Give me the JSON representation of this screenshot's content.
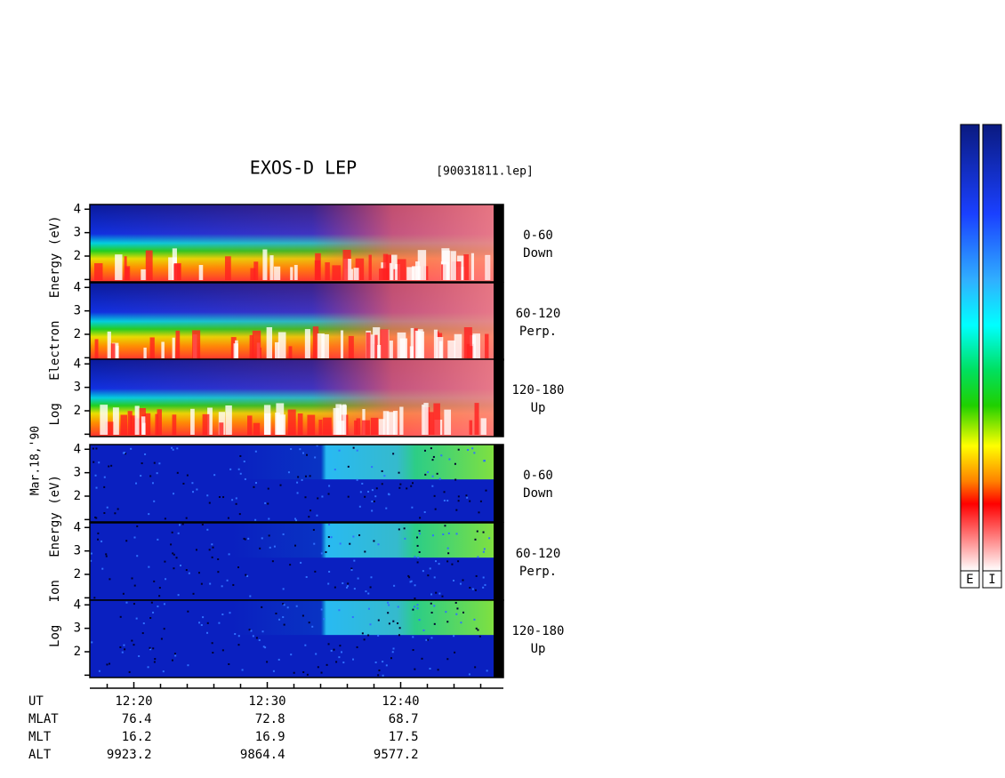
{
  "chart_data": {
    "type": "spectrogram",
    "title": "EXOS-D LEP",
    "file_label": "[90031811.lep]",
    "date_label": "Mar.18,'90",
    "ylim": [
      0.9,
      4.2
    ],
    "yticks": [
      2,
      3,
      4
    ],
    "yminorticks": [
      1
    ],
    "xlim": [
      736.7,
      767.7
    ],
    "xticks": [
      {
        "value": 740,
        "label": "12:20"
      },
      {
        "value": 750,
        "label": "12:30"
      },
      {
        "value": 760,
        "label": "12:40"
      }
    ],
    "xminorticks": [
      738,
      742,
      744,
      746,
      748,
      752,
      754,
      756,
      758,
      762,
      764,
      766
    ],
    "x_row_label": "UT",
    "groups": [
      {
        "species": "electron",
        "ylabel": "Log   Electron   Energy (eV)",
        "panels": [
          {
            "angle": "0-60",
            "direction": "Down"
          },
          {
            "angle": "60-120",
            "direction": "Perp."
          },
          {
            "angle": "120-180",
            "direction": "Up"
          }
        ]
      },
      {
        "species": "ion",
        "ylabel": "Log   Ion   Energy (eV)",
        "panels": [
          {
            "angle": "0-60",
            "direction": "Down"
          },
          {
            "angle": "60-120",
            "direction": "Perp."
          },
          {
            "angle": "120-180",
            "direction": "Up"
          }
        ]
      }
    ],
    "ephemeris": [
      {
        "name": "MLAT",
        "values": [
          76.4,
          72.8,
          68.7
        ]
      },
      {
        "name": "MLT",
        "values": [
          16.2,
          16.9,
          17.5
        ]
      },
      {
        "name": "ALT",
        "values": [
          9923.2,
          9864.4,
          9577.2
        ]
      }
    ],
    "colorbars": [
      "E",
      "I"
    ]
  }
}
